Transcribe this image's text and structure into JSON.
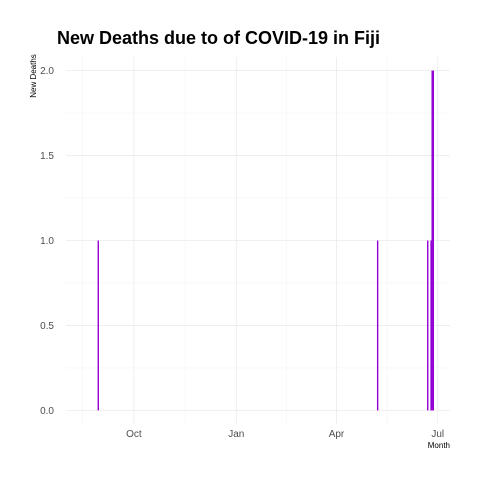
{
  "chart_data": {
    "type": "bar",
    "title": "New Deaths due to of COVID-19 in Fiji",
    "xlabel": "Month",
    "ylabel": "New Deaths",
    "x_range": [
      "2020-08-01",
      "2021-07-12"
    ],
    "ylim": [
      -0.08,
      2.08
    ],
    "x_ticks": [
      {
        "date": "2020-10-01",
        "label": "Oct"
      },
      {
        "date": "2021-01-01",
        "label": "Jan"
      },
      {
        "date": "2021-04-01",
        "label": "Apr"
      },
      {
        "date": "2021-07-01",
        "label": "Jul"
      }
    ],
    "y_ticks": [
      {
        "value": 0.0,
        "label": "0.0"
      },
      {
        "value": 0.5,
        "label": "0.5"
      },
      {
        "value": 1.0,
        "label": "1.0"
      },
      {
        "value": 1.5,
        "label": "1.5"
      },
      {
        "value": 2.0,
        "label": "2.0"
      }
    ],
    "grid": true,
    "color": "#9400D3",
    "values": [
      {
        "date": "2020-08-30",
        "deaths": 1
      },
      {
        "date": "2021-05-08",
        "deaths": 1
      },
      {
        "date": "2021-06-22",
        "deaths": 1
      },
      {
        "date": "2021-06-25",
        "deaths": 1
      },
      {
        "date": "2021-06-26",
        "deaths": 2
      },
      {
        "date": "2021-06-27",
        "deaths": 2
      }
    ]
  }
}
